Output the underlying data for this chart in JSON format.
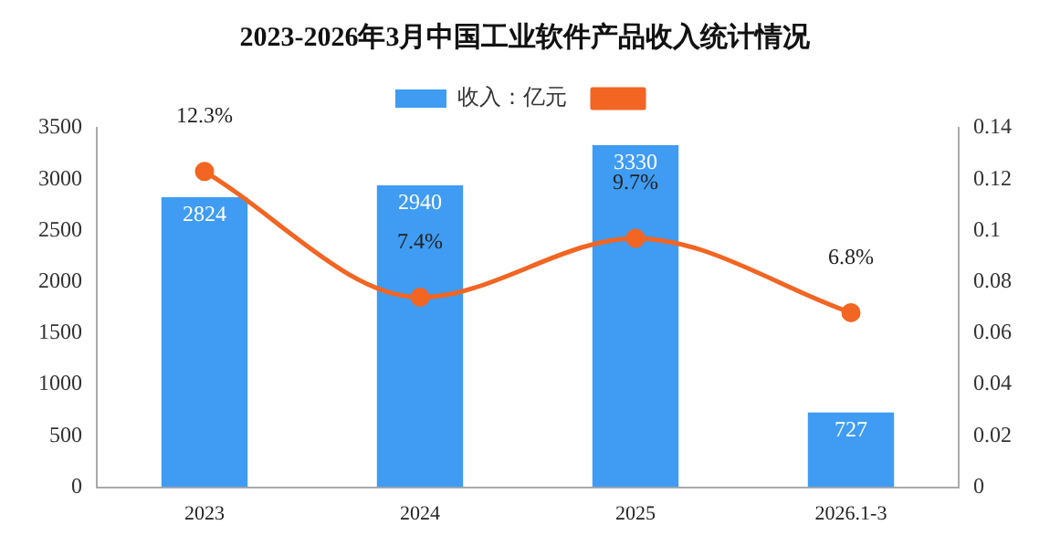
{
  "chart_data": {
    "type": "bar",
    "title": "2023-2026年3月中国工业软件产品收入统计情况",
    "categories": [
      "2023",
      "2024",
      "2025",
      "2026.1-3"
    ],
    "series": [
      {
        "name": "收入：亿元",
        "color": "#3f9cf2",
        "values": [
          2824,
          2940,
          3330,
          727
        ]
      },
      {
        "type": "line",
        "axis": "y2",
        "color": "#f26522",
        "values": [
          0.123,
          0.074,
          0.097,
          0.068
        ],
        "value_labels": [
          "12.3%",
          "7.4%",
          "9.7%",
          "6.8%"
        ]
      }
    ],
    "ylim": [
      0,
      3500
    ],
    "yticks": [
      0,
      500,
      1000,
      1500,
      2000,
      2500,
      3000,
      3500
    ],
    "y2lim": [
      0,
      0.14
    ],
    "y2ticks": [
      0,
      0.02,
      0.04,
      0.06,
      0.08,
      0.1,
      0.12,
      0.14
    ],
    "data_labels": true,
    "grid": false,
    "legend": "top",
    "marker": "circle"
  }
}
